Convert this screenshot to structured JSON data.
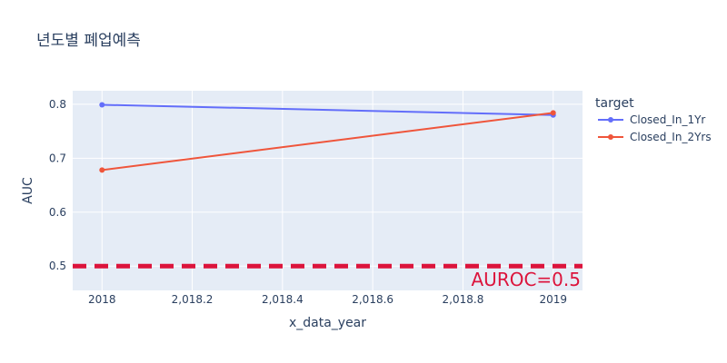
{
  "chart_data": {
    "type": "line",
    "title": "년도별 폐업예측",
    "xlabel": "x_data_year",
    "ylabel": "AUC",
    "x": [
      2018,
      2019
    ],
    "xlim": [
      2017.935,
      2019.065
    ],
    "ylim": [
      0.455,
      0.825
    ],
    "x_ticks": [
      2018,
      2018.2,
      2018.4,
      2018.6,
      2018.8,
      2019
    ],
    "x_tick_labels": [
      "2018",
      "2,018.2",
      "2,018.4",
      "2,018.6",
      "2,018.8",
      "2019"
    ],
    "y_ticks": [
      0.5,
      0.6,
      0.7,
      0.8
    ],
    "y_tick_labels": [
      "0.5",
      "0.6",
      "0.7",
      "0.8"
    ],
    "legend_title": "target",
    "legend_position": "right",
    "grid": true,
    "plot_background": "#e5ecf6",
    "series": [
      {
        "name": "Closed_In_1Yr",
        "color": "#636efa",
        "values": [
          0.799,
          0.78
        ]
      },
      {
        "name": "Closed_In_2Yrs",
        "color": "#ef553b",
        "values": [
          0.678,
          0.784
        ]
      }
    ],
    "reference_line": {
      "y": 0.5,
      "color": "#dc143c",
      "style": "dashed",
      "label": "AUROC=0.5"
    }
  }
}
